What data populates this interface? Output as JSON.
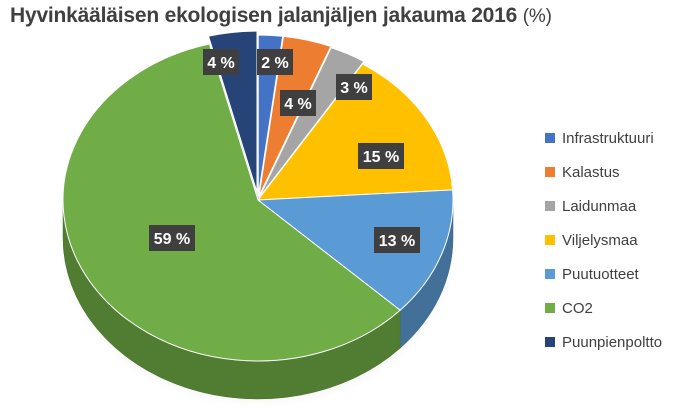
{
  "title": {
    "main": "Hyvinkääläisen ekologisen jalanjäljen jakauma 2016",
    "unit": "(%)"
  },
  "chart_data": {
    "type": "pie",
    "title": "Hyvinkääläisen ekologisen jalanjäljen jakauma 2016 (%)",
    "style": "3d",
    "legend_position": "right",
    "slices": [
      {
        "name": "Infrastruktuuri",
        "value": 2,
        "label": "2 %",
        "color": "#4472C4"
      },
      {
        "name": "Kalastus",
        "value": 4,
        "label": "4 %",
        "color": "#ED7D31"
      },
      {
        "name": "Laidunmaa",
        "value": 3,
        "label": "3 %",
        "color": "#A5A5A5"
      },
      {
        "name": "Viljelysmaa",
        "value": 15,
        "label": "15 %",
        "color": "#FFC000"
      },
      {
        "name": "Puutuotteet",
        "value": 13,
        "label": "13 %",
        "color": "#5B9BD5"
      },
      {
        "name": "CO2",
        "value": 59,
        "label": "59 %",
        "color": "#70AD47"
      },
      {
        "name": "Puunpienpoltto",
        "value": 4,
        "label": "4 %",
        "color": "#264478"
      }
    ]
  }
}
